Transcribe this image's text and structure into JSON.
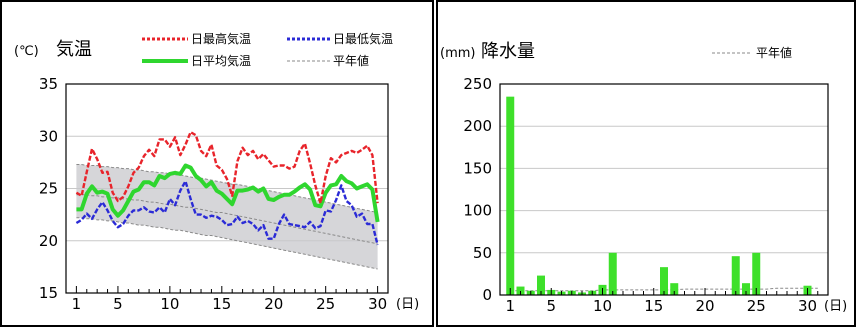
{
  "colors": {
    "max_temp": "#e8242b",
    "min_temp": "#2b2bd6",
    "mean_temp": "#2fd62f",
    "normal": "#8a8a8a",
    "normal_band": "#c8c8cc",
    "precip": "#3ee02a"
  },
  "chart_data": [
    {
      "type": "line",
      "title": "気温",
      "unit_label": "(℃)",
      "x_unit_label": "(日)",
      "xlim": [
        0,
        31
      ],
      "ylim": [
        15,
        35
      ],
      "x_tick_labels": [
        "1",
        "5",
        "10",
        "15",
        "20",
        "25",
        "30"
      ],
      "x_tick_values": [
        1,
        5,
        10,
        15,
        20,
        25,
        30
      ],
      "y_tick_labels": [
        "35",
        "30",
        "25",
        "20",
        "15"
      ],
      "y_tick_values": [
        35,
        30,
        25,
        20,
        15
      ],
      "legend": [
        {
          "key": "max",
          "label": "日最高気温"
        },
        {
          "key": "min",
          "label": "日最低気温"
        },
        {
          "key": "mean",
          "label": "日平均気温"
        },
        {
          "key": "normal",
          "label": "平年値"
        }
      ],
      "x": [
        1,
        1.5,
        2,
        2.5,
        3,
        3.5,
        4,
        4.5,
        5,
        5.5,
        6,
        6.5,
        7,
        7.5,
        8,
        8.5,
        9,
        9.5,
        10,
        10.5,
        11,
        11.5,
        12,
        12.5,
        13,
        13.5,
        14,
        14.5,
        15,
        15.5,
        16,
        16.5,
        17,
        17.5,
        18,
        18.5,
        19,
        19.5,
        20,
        20.5,
        21,
        21.5,
        22,
        22.5,
        23,
        23.5,
        24,
        24.5,
        25,
        25.5,
        26,
        26.5,
        27,
        27.5,
        28,
        28.5,
        29,
        29.5,
        30
      ],
      "series": [
        {
          "key": "max",
          "name": "日最高気温",
          "values": [
            24.6,
            24.3,
            26.6,
            28.8,
            27.8,
            26.5,
            26.6,
            24.6,
            23.8,
            24.2,
            25.2,
            26.5,
            27.0,
            28.1,
            28.7,
            28.1,
            29.7,
            29.7,
            29.0,
            29.9,
            28.2,
            29.2,
            30.4,
            30.1,
            28.6,
            28.1,
            29.2,
            27.2,
            26.8,
            25.9,
            24.3,
            27.6,
            28.9,
            28.2,
            28.6,
            27.8,
            28.3,
            27.7,
            27.1,
            27.2,
            27.2,
            26.9,
            27.1,
            28.6,
            29.3,
            27.4,
            25.3,
            23.6,
            26.2,
            27.9,
            27.5,
            28.2,
            28.4,
            28.6,
            28.4,
            28.7,
            29.1,
            28.2,
            23.6
          ]
        },
        {
          "key": "min",
          "name": "日最低気温",
          "values": [
            21.7,
            22.0,
            22.6,
            22.1,
            23.0,
            23.7,
            22.9,
            21.9,
            21.3,
            21.6,
            22.4,
            22.9,
            22.9,
            23.2,
            22.8,
            22.7,
            23.2,
            22.7,
            24.0,
            23.4,
            24.8,
            25.7,
            24.0,
            22.5,
            22.5,
            22.2,
            22.4,
            22.3,
            22.0,
            21.5,
            21.6,
            22.3,
            21.7,
            21.9,
            21.6,
            21.0,
            21.5,
            20.2,
            20.2,
            21.6,
            22.5,
            21.6,
            21.5,
            21.4,
            21.3,
            21.8,
            21.2,
            21.4,
            22.9,
            22.8,
            23.9,
            25.3,
            23.8,
            23.4,
            22.3,
            22.6,
            21.6,
            21.6,
            19.6
          ]
        },
        {
          "key": "mean",
          "name": "日平均気温",
          "values": [
            23.0,
            23.0,
            24.5,
            25.2,
            24.6,
            24.7,
            24.5,
            23.0,
            22.4,
            22.9,
            23.8,
            24.7,
            24.9,
            25.6,
            25.6,
            25.3,
            26.2,
            26.0,
            26.4,
            26.5,
            26.4,
            27.2,
            27.0,
            26.2,
            25.8,
            25.2,
            25.6,
            24.8,
            24.5,
            24.0,
            23.5,
            24.8,
            24.8,
            24.9,
            25.1,
            24.7,
            25.0,
            24.0,
            23.9,
            24.2,
            24.4,
            24.4,
            24.7,
            25.1,
            25.4,
            24.9,
            23.4,
            23.3,
            24.6,
            25.3,
            25.4,
            26.2,
            25.7,
            25.5,
            25.0,
            25.2,
            25.4,
            24.9,
            21.8
          ]
        },
        {
          "key": "normal_max",
          "name": "平年値",
          "values": [
            27.3,
            27.3,
            27.2,
            27.2,
            27.2,
            27.1,
            27.1,
            27.0,
            27.0,
            26.9,
            26.9,
            26.8,
            26.8,
            26.7,
            26.6,
            26.6,
            26.5,
            26.5,
            26.4,
            26.3,
            26.3,
            26.2,
            26.1,
            26.0,
            26.0,
            25.9,
            25.8,
            25.7,
            25.6,
            25.5,
            25.4,
            25.4,
            25.3,
            25.2,
            25.1,
            25.0,
            24.9,
            24.8,
            24.7,
            24.6,
            24.5,
            24.4,
            24.3,
            24.2,
            24.1,
            24.0,
            23.9,
            23.8,
            23.7,
            23.6,
            23.5,
            23.4,
            23.3,
            23.2,
            23.1,
            23.0,
            22.9,
            22.8,
            22.7
          ]
        },
        {
          "key": "normal_mean",
          "name": "平年値",
          "values": [
            24.4,
            24.4,
            24.4,
            24.3,
            24.3,
            24.2,
            24.2,
            24.1,
            24.1,
            24.0,
            24.0,
            23.9,
            23.9,
            23.8,
            23.7,
            23.7,
            23.6,
            23.5,
            23.5,
            23.4,
            23.3,
            23.2,
            23.2,
            23.1,
            23.0,
            22.9,
            22.8,
            22.7,
            22.7,
            22.6,
            22.5,
            22.4,
            22.3,
            22.2,
            22.1,
            22.0,
            21.9,
            21.8,
            21.7,
            21.6,
            21.5,
            21.4,
            21.3,
            21.2,
            21.1,
            21.0,
            20.9,
            20.8,
            20.7,
            20.6,
            20.5,
            20.4,
            20.3,
            20.2,
            20.1,
            20.0,
            19.9,
            19.8,
            19.7
          ]
        },
        {
          "key": "normal_min",
          "name": "平年値",
          "values": [
            22.2,
            22.2,
            22.1,
            22.1,
            22.0,
            22.0,
            21.9,
            21.9,
            21.8,
            21.7,
            21.7,
            21.6,
            21.5,
            21.5,
            21.4,
            21.3,
            21.3,
            21.2,
            21.1,
            21.0,
            21.0,
            20.9,
            20.8,
            20.7,
            20.6,
            20.5,
            20.5,
            20.4,
            20.3,
            20.2,
            20.1,
            20.0,
            19.9,
            19.8,
            19.7,
            19.6,
            19.5,
            19.4,
            19.3,
            19.2,
            19.1,
            19.0,
            18.9,
            18.8,
            18.7,
            18.6,
            18.5,
            18.4,
            18.3,
            18.2,
            18.1,
            18.0,
            17.9,
            17.8,
            17.7,
            17.6,
            17.5,
            17.4,
            17.3
          ]
        }
      ]
    },
    {
      "type": "bar",
      "title": "降水量",
      "unit_label": "(mm)",
      "x_unit_label": "(日)",
      "xlim": [
        0,
        32
      ],
      "ylim": [
        0,
        250
      ],
      "x_tick_labels": [
        "1",
        "5",
        "10",
        "15",
        "20",
        "25",
        "30"
      ],
      "x_tick_values": [
        1,
        5,
        10,
        15,
        20,
        25,
        30
      ],
      "y_tick_labels": [
        "250",
        "200",
        "150",
        "100",
        "50",
        "0"
      ],
      "y_tick_values": [
        250,
        200,
        150,
        100,
        50,
        0
      ],
      "legend": [
        {
          "key": "normal",
          "label": "平年値"
        }
      ],
      "days": [
        1,
        2,
        3,
        4,
        5,
        6,
        7,
        8,
        9,
        10,
        11,
        12,
        13,
        14,
        15,
        16,
        17,
        18,
        19,
        20,
        21,
        22,
        23,
        24,
        25,
        26,
        27,
        28,
        29,
        30,
        31
      ],
      "values": [
        235,
        10,
        5,
        23,
        6,
        4,
        5,
        3,
        5,
        12,
        50,
        0,
        0,
        0,
        0,
        33,
        14,
        0,
        0,
        0,
        0,
        0,
        46,
        14,
        50,
        0,
        0,
        0,
        0,
        11,
        0
      ],
      "normal_values": [
        5,
        5,
        5,
        5,
        5,
        5,
        5,
        5,
        5,
        6,
        6,
        6,
        6,
        6,
        6,
        6,
        6,
        7,
        7,
        7,
        7,
        7,
        7,
        7,
        7,
        7,
        8,
        8,
        8,
        8,
        8
      ]
    }
  ]
}
